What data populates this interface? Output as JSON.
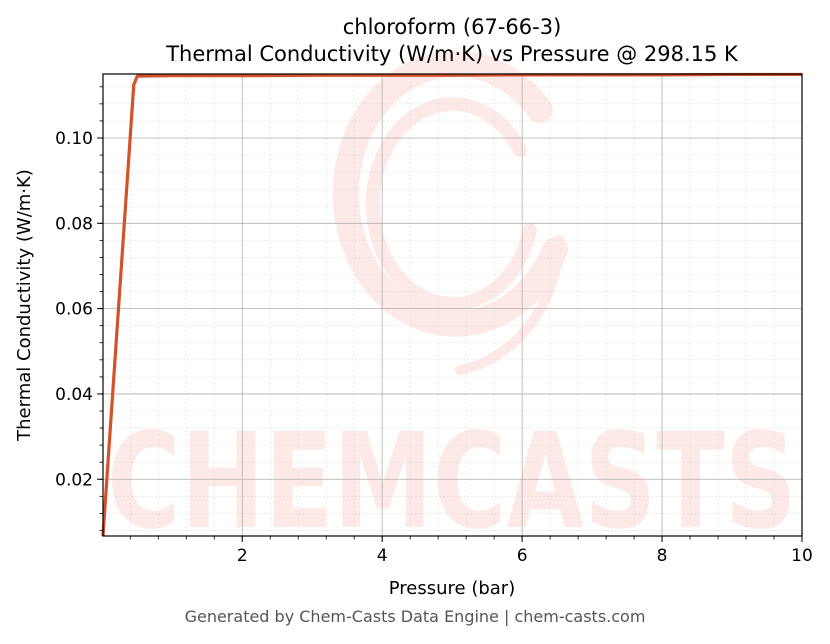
{
  "chart_data": {
    "type": "line",
    "title": "chloroform (67-66-3)",
    "subtitle": "Thermal Conductivity (W/m·K) vs Pressure @ 298.15 K",
    "xlabel": "Pressure (bar)",
    "ylabel": "Thermal Conductivity (W/m·K)",
    "xlim": [
      0.01,
      10
    ],
    "ylim": [
      0.0067,
      0.115
    ],
    "x_ticks": [
      2,
      4,
      6,
      8,
      10
    ],
    "x_tick_labels": [
      "2",
      "4",
      "6",
      "8",
      "10"
    ],
    "y_ticks": [
      0.02,
      0.04,
      0.06,
      0.08,
      0.1
    ],
    "y_tick_labels": [
      "0.02",
      "0.04",
      "0.06",
      "0.08",
      "0.10"
    ],
    "grid": true,
    "series": [
      {
        "color": "#d4522a",
        "x": [
          0.01,
          0.05,
          0.1,
          0.2,
          0.3,
          0.4,
          0.45,
          0.5,
          1,
          2,
          3,
          4,
          5,
          6,
          7,
          8,
          9,
          10
        ],
        "y": [
          0.0067,
          0.0165,
          0.0285,
          0.0525,
          0.0765,
          0.1005,
          0.1125,
          0.1145,
          0.1146,
          0.1146,
          0.1147,
          0.1147,
          0.1147,
          0.1148,
          0.1148,
          0.1148,
          0.1149,
          0.1149
        ]
      }
    ]
  },
  "watermark": "CHEMCASTS",
  "footer": "Generated by Chem-Casts Data Engine | chem-casts.com"
}
